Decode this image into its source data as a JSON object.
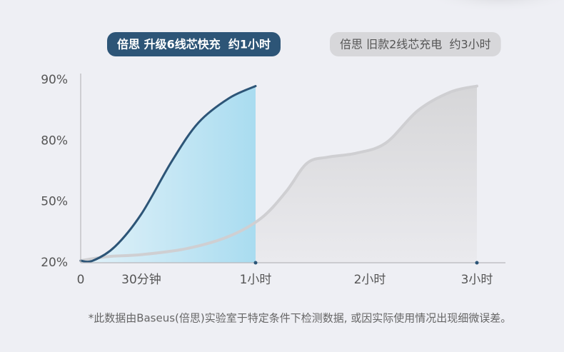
{
  "chart_data": {
    "type": "area",
    "xlim": [
      0,
      180
    ],
    "xticks": [
      0,
      {
        "value": 30,
        "label": "30分钟"
      },
      {
        "value": 60,
        "label": "1小时"
      },
      {
        "value": 120,
        "label": "2小时"
      },
      {
        "value": 180,
        "label": "3小时"
      }
    ],
    "ylim": [
      20,
      90
    ],
    "yticks": [
      {
        "value": 20,
        "label": "20%"
      },
      {
        "value": 50,
        "label": "50%"
      },
      {
        "value": 80,
        "label": "80%"
      },
      {
        "value": 90,
        "label": "90%"
      }
    ],
    "series": [
      {
        "name": "倍思 升级6线芯快充  约1小时",
        "color": "#2d5577",
        "x": [
          0,
          6,
          17,
          30,
          38,
          45,
          53,
          60
        ],
        "values": [
          21,
          21,
          28,
          44,
          70,
          83,
          87,
          89
        ]
      },
      {
        "name": "倍思 旧款2线芯充电  约3小时",
        "color": "#cfcfd2",
        "x": [
          0,
          13,
          30,
          42,
          53,
          63,
          76,
          87,
          98,
          113,
          129,
          147,
          165,
          180
        ],
        "values": [
          21,
          23,
          24,
          27,
          33,
          42,
          55,
          69,
          72,
          74,
          79,
          85,
          88,
          89
        ]
      }
    ],
    "footnote": "*此数据由Baseus(倍思)实验室于特定条件下检测数据, 或因实际使用情况出现细微误差。"
  }
}
